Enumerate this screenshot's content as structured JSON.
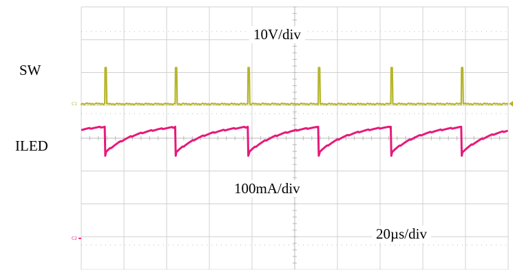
{
  "labels": {
    "sw": "SW",
    "iled": "ILED",
    "volts_per_div": "10V/div",
    "amps_per_div": "100mA/div",
    "time_per_div": "20µs/div",
    "ch1_marker": "C1",
    "ch2_marker": "C2"
  },
  "colors": {
    "sw_trace": "#b5b52a",
    "iled_trace": "#e6197a",
    "grid": "#d0d0d0",
    "grid_dot": "#b8b8b8",
    "background": "#ffffff"
  },
  "chart_data": {
    "type": "line",
    "title": "",
    "xlabel": "",
    "ylabel": "",
    "grid": true,
    "x_divisions": 10,
    "y_divisions": 8,
    "time_per_div_us": 20,
    "xlim_us": [
      0,
      200
    ],
    "series": [
      {
        "name": "SW",
        "scale": "10V/div",
        "baseline_div_from_top": 2.95,
        "pulse_height_div": 1.1,
        "pulse_width_us": 1.2,
        "period_us": 35,
        "pulse_times_us": [
          11,
          44,
          78,
          111,
          145,
          178
        ],
        "ref_marker": "C1"
      },
      {
        "name": "ILED",
        "scale": "100mA/div",
        "period_us": 35,
        "fall_times_us": [
          11,
          44,
          78,
          111,
          145,
          178
        ],
        "high_div_from_top": 3.65,
        "low_div_from_top": 4.45,
        "ref_marker": "C2"
      }
    ]
  }
}
